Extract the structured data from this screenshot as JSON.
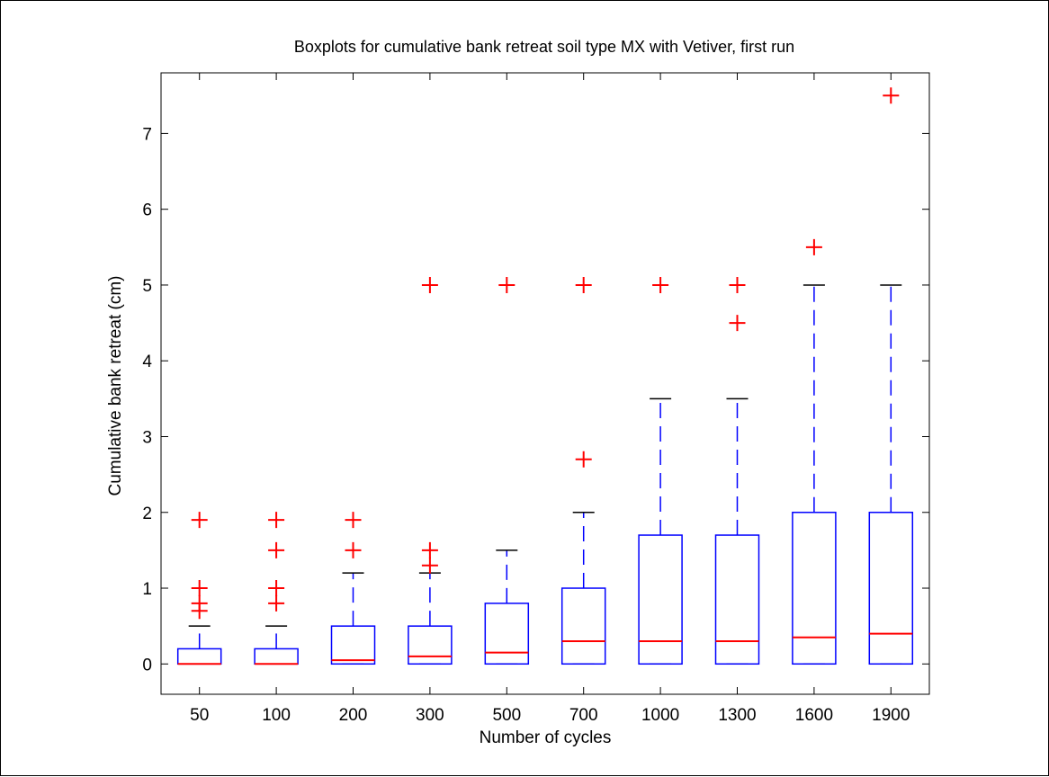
{
  "chart_data": {
    "type": "boxplot",
    "title": "Boxplots for cumulative bank retreat soil type MX with Vetiver, first run",
    "xlabel": "Number of cycles",
    "ylabel": "Cumulative bank retreat (cm)",
    "ylim": [
      -0.4,
      7.8
    ],
    "yticks": [
      "0",
      "1",
      "2",
      "3",
      "4",
      "5",
      "6",
      "7"
    ],
    "categories": [
      "50",
      "100",
      "200",
      "300",
      "500",
      "700",
      "1000",
      "1300",
      "1600",
      "1900"
    ],
    "grid": false,
    "colors": {
      "box": "#0000ff",
      "median": "#ff0000",
      "outlier": "#ff0000",
      "whisker_cap": "#000000"
    },
    "boxes": [
      {
        "category": "50",
        "whisker_low": 0,
        "q1": 0,
        "median": 0,
        "q3": 0.2,
        "whisker_high": 0.5,
        "outliers": [
          0.7,
          0.8,
          1.0,
          1.9
        ]
      },
      {
        "category": "100",
        "whisker_low": 0,
        "q1": 0,
        "median": 0,
        "q3": 0.2,
        "whisker_high": 0.5,
        "outliers": [
          0.8,
          1.0,
          1.5,
          1.9
        ]
      },
      {
        "category": "200",
        "whisker_low": 0,
        "q1": 0,
        "median": 0.05,
        "q3": 0.5,
        "whisker_high": 1.2,
        "outliers": [
          1.5,
          1.9
        ]
      },
      {
        "category": "300",
        "whisker_low": 0,
        "q1": 0,
        "median": 0.1,
        "q3": 0.5,
        "whisker_high": 1.2,
        "outliers": [
          1.3,
          1.5,
          5.0
        ]
      },
      {
        "category": "500",
        "whisker_low": 0,
        "q1": 0,
        "median": 0.15,
        "q3": 0.8,
        "whisker_high": 1.5,
        "outliers": [
          5.0
        ]
      },
      {
        "category": "700",
        "whisker_low": 0,
        "q1": 0,
        "median": 0.3,
        "q3": 1.0,
        "whisker_high": 2.0,
        "outliers": [
          2.7,
          5.0
        ]
      },
      {
        "category": "1000",
        "whisker_low": 0,
        "q1": 0,
        "median": 0.3,
        "q3": 1.7,
        "whisker_high": 3.5,
        "outliers": [
          5.0
        ]
      },
      {
        "category": "1300",
        "whisker_low": 0,
        "q1": 0,
        "median": 0.3,
        "q3": 1.7,
        "whisker_high": 3.5,
        "outliers": [
          4.5,
          5.0
        ]
      },
      {
        "category": "1600",
        "whisker_low": 0,
        "q1": 0,
        "median": 0.35,
        "q3": 2.0,
        "whisker_high": 5.0,
        "outliers": [
          5.5
        ]
      },
      {
        "category": "1900",
        "whisker_low": 0,
        "q1": 0,
        "median": 0.4,
        "q3": 2.0,
        "whisker_high": 5.0,
        "outliers": [
          7.5
        ]
      }
    ]
  }
}
